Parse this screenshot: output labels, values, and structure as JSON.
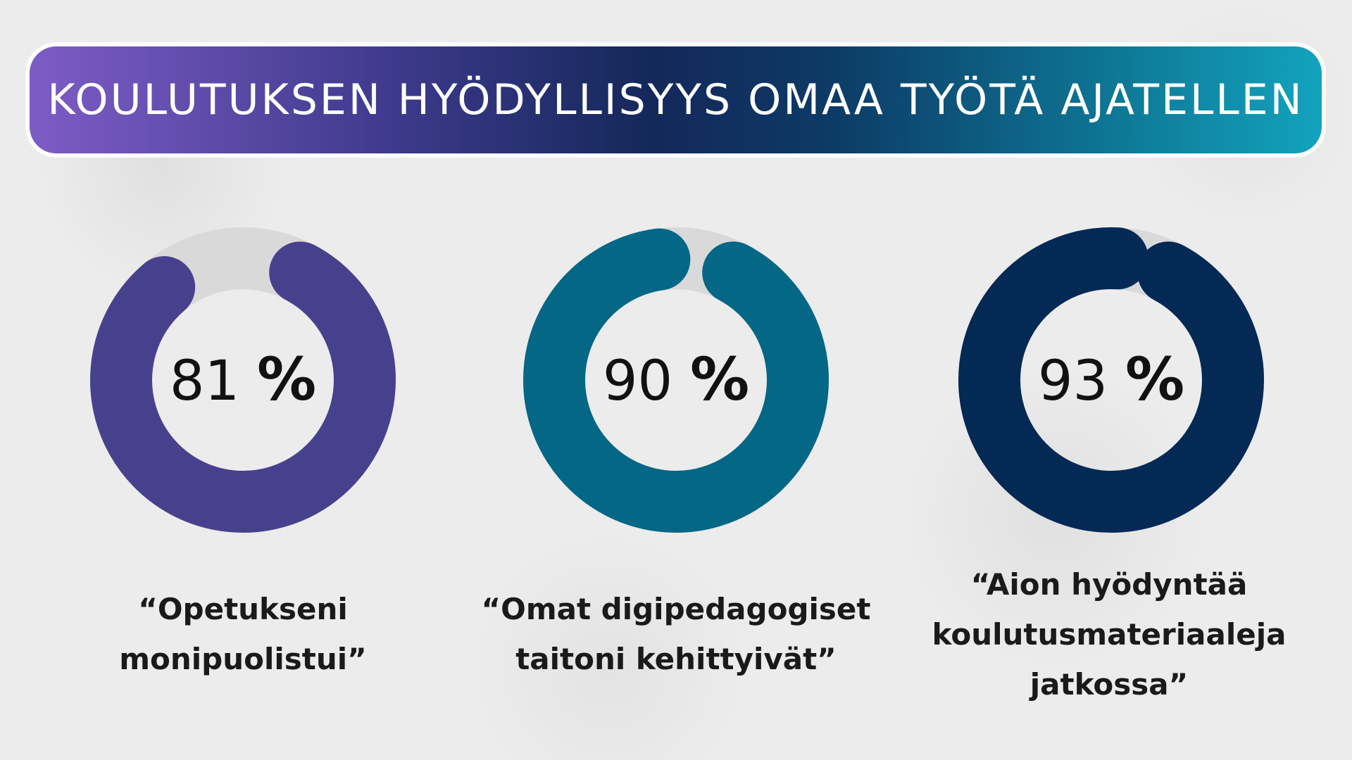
{
  "title": "KOULUTUKSEN HYÖDYLLISYYS OMAA TYÖTÄ AJATELLEN",
  "chart_data": [
    {
      "type": "pie",
      "percent": 81,
      "value_label": "81",
      "unit": "%",
      "caption_lines": [
        "“Opetukseni",
        "monipuolistui”"
      ],
      "color": "#47418d",
      "track_color": "#d9d9d9"
    },
    {
      "type": "pie",
      "percent": 90,
      "value_label": "90",
      "unit": "%",
      "caption_lines": [
        "“Omat digipedagogiset",
        "taitoni kehittyivät”"
      ],
      "color": "#046786",
      "track_color": "#d9d9d9"
    },
    {
      "type": "pie",
      "percent": 93,
      "value_label": "93",
      "unit": "%",
      "caption_lines": [
        "“Aion hyödyntää",
        "koulutusmateriaaleja",
        "jatkossa”"
      ],
      "color": "#052955",
      "track_color": "#d9d9d9"
    }
  ]
}
